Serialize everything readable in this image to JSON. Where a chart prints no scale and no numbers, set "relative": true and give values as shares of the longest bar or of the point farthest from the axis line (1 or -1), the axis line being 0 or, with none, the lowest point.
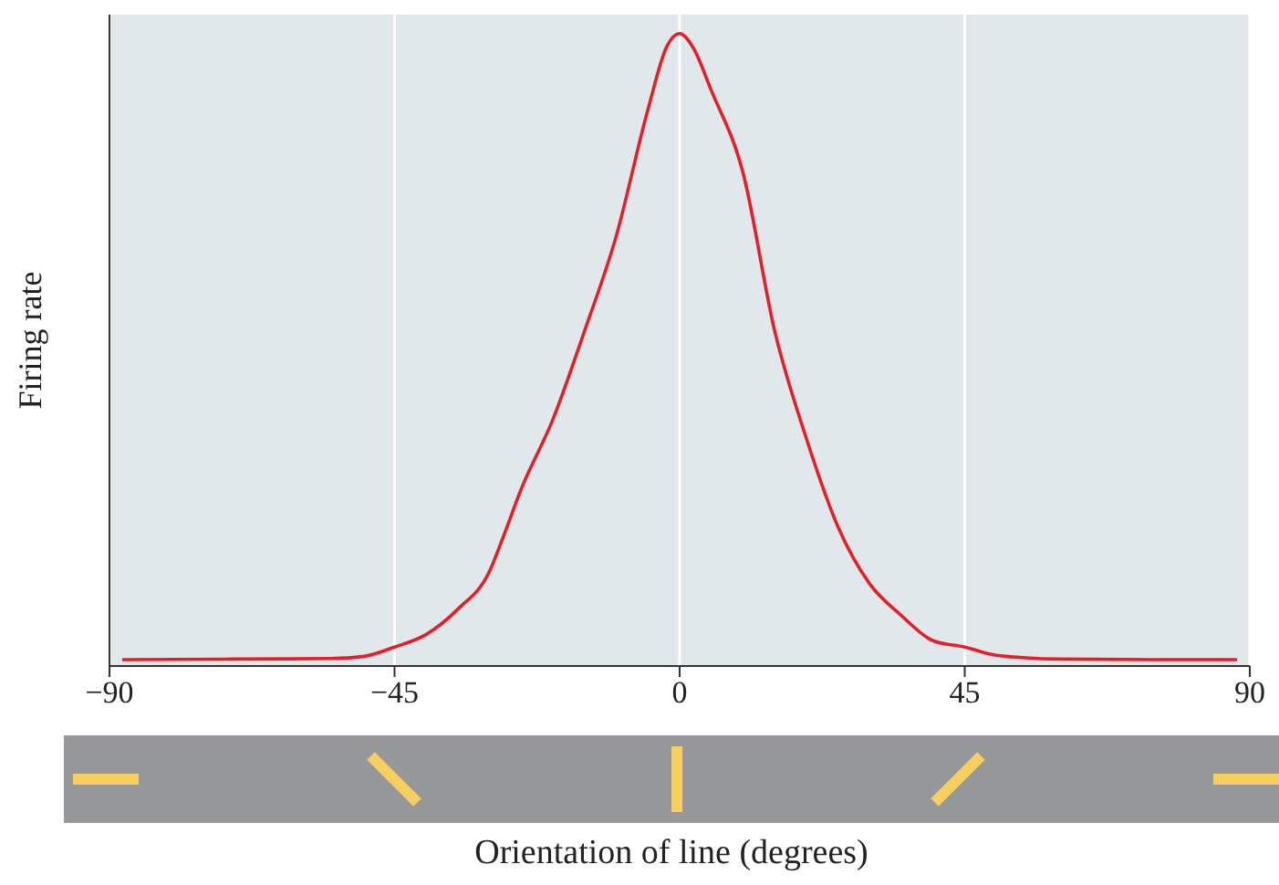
{
  "chart_data": {
    "type": "line",
    "relative": true,
    "xlabel": "Orientation of line (degrees)",
    "ylabel": "Firing rate",
    "xlim": [
      -90,
      90
    ],
    "xticks": [
      {
        "value": -90,
        "label": "−90"
      },
      {
        "value": -45,
        "label": "−45"
      },
      0,
      45,
      90
    ],
    "grid": "x",
    "marker": "none",
    "line_style": "solid",
    "x": [
      -88,
      -70,
      -55,
      -50,
      -45,
      -40,
      -35,
      -30,
      -28,
      -25,
      -20,
      -15,
      -10,
      -5,
      -2,
      0,
      2,
      5,
      10,
      15,
      20,
      25,
      30,
      35,
      40,
      45,
      50,
      60,
      75,
      88
    ],
    "series": [
      {
        "color": "#e3202a",
        "values": [
          0.01,
          0.011,
          0.012,
          0.015,
          0.03,
          0.05,
          0.09,
          0.15,
          0.2,
          0.28,
          0.39,
          0.53,
          0.68,
          0.88,
          0.98,
          1,
          0.98,
          0.91,
          0.78,
          0.53,
          0.36,
          0.22,
          0.13,
          0.08,
          0.04,
          0.03,
          0.017,
          0.011,
          0.01,
          0.01
        ]
      }
    ]
  }
}
